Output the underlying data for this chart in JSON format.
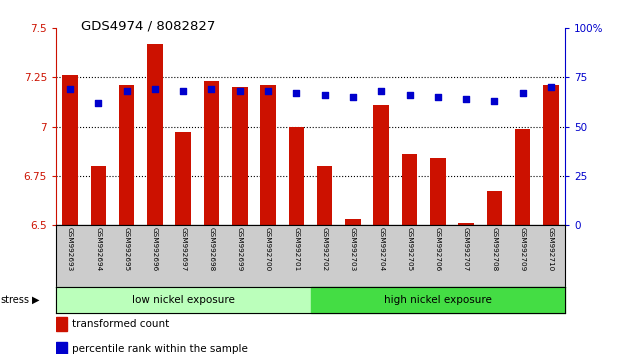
{
  "title": "GDS4974 / 8082827",
  "samples": [
    "GSM992693",
    "GSM992694",
    "GSM992695",
    "GSM992696",
    "GSM992697",
    "GSM992698",
    "GSM992699",
    "GSM992700",
    "GSM992701",
    "GSM992702",
    "GSM992703",
    "GSM992704",
    "GSM992705",
    "GSM992706",
    "GSM992707",
    "GSM992708",
    "GSM992709",
    "GSM992710"
  ],
  "transformed_count": [
    7.26,
    6.8,
    7.21,
    7.42,
    6.97,
    7.23,
    7.2,
    7.21,
    7.0,
    6.8,
    6.53,
    7.11,
    6.86,
    6.84,
    6.51,
    6.67,
    6.99,
    7.21
  ],
  "percentile_rank": [
    69,
    62,
    68,
    69,
    68,
    69,
    68,
    68,
    67,
    66,
    65,
    68,
    66,
    65,
    64,
    63,
    67,
    70
  ],
  "bar_color": "#cc1100",
  "dot_color": "#0000cc",
  "left_ylim": [
    6.5,
    7.5
  ],
  "right_ylim": [
    0,
    100
  ],
  "left_yticks": [
    6.5,
    6.75,
    7.0,
    7.25,
    7.5
  ],
  "right_yticks": [
    0,
    25,
    50,
    75,
    100
  ],
  "left_ytick_labels": [
    "6.5",
    "6.75",
    "7",
    "7.25",
    "7.5"
  ],
  "right_ytick_labels": [
    "0",
    "25",
    "50",
    "75",
    "100%"
  ],
  "group1_label": "low nickel exposure",
  "group2_label": "high nickel exposure",
  "low_nickel_count": 9,
  "high_nickel_count": 9,
  "group1_color": "#bbffbb",
  "group2_color": "#44dd44",
  "stress_label": "stress",
  "legend_bar_label": "transformed count",
  "legend_dot_label": "percentile rank within the sample",
  "background_color": "#ffffff",
  "tick_label_area_color": "#cccccc"
}
